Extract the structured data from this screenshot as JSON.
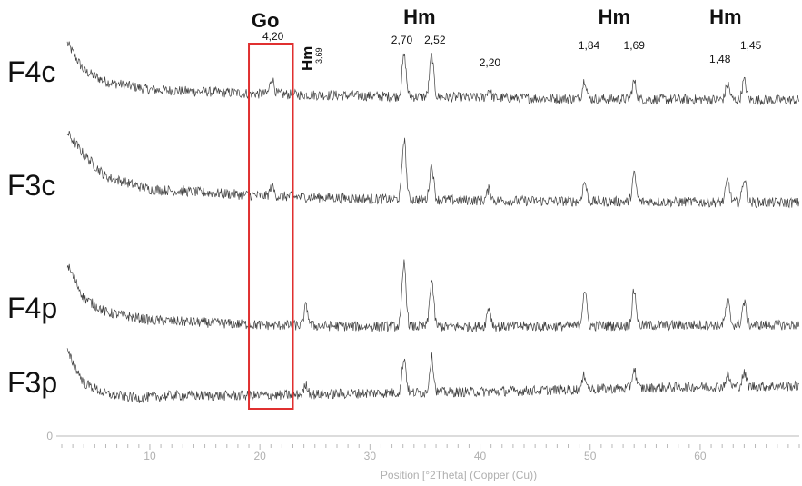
{
  "chart_data": {
    "type": "line",
    "title": "",
    "xlabel": "Position [°2Theta] (Copper (Cu))",
    "ylabel": "",
    "xlim": [
      2,
      69
    ],
    "y_tick_label": "0",
    "x_ticks": [
      10,
      20,
      30,
      40,
      50,
      60
    ],
    "grid": false,
    "series": [
      {
        "name": "F4c",
        "baseline": [
          [
            2,
            2.5
          ],
          [
            4,
            1.35
          ],
          [
            6,
            1.0
          ],
          [
            10,
            0.75
          ],
          [
            20,
            0.62
          ],
          [
            30,
            0.55
          ],
          [
            40,
            0.5
          ],
          [
            50,
            0.46
          ],
          [
            60,
            0.44
          ],
          [
            69,
            0.42
          ]
        ],
        "peaks": [
          [
            21.1,
            0.5
          ],
          [
            33.1,
            1.3
          ],
          [
            35.6,
            1.3
          ],
          [
            40.8,
            0.25
          ],
          [
            49.5,
            0.6
          ],
          [
            54.0,
            0.55
          ],
          [
            62.5,
            0.5
          ],
          [
            64.0,
            0.6
          ]
        ]
      },
      {
        "name": "F3c",
        "baseline": [
          [
            2,
            2.9
          ],
          [
            4,
            2.0
          ],
          [
            6,
            1.3
          ],
          [
            10,
            0.9
          ],
          [
            20,
            0.7
          ],
          [
            30,
            0.6
          ],
          [
            40,
            0.55
          ],
          [
            50,
            0.52
          ],
          [
            60,
            0.5
          ],
          [
            69,
            0.48
          ]
        ],
        "peaks": [
          [
            21.1,
            0.3
          ],
          [
            33.1,
            1.9
          ],
          [
            35.6,
            1.1
          ],
          [
            40.8,
            0.35
          ],
          [
            49.5,
            0.6
          ],
          [
            54.0,
            0.85
          ],
          [
            62.5,
            0.7
          ],
          [
            64.0,
            0.75
          ]
        ]
      },
      {
        "name": "F4p",
        "baseline": [
          [
            2,
            2.6
          ],
          [
            4,
            1.2
          ],
          [
            6,
            0.75
          ],
          [
            10,
            0.5
          ],
          [
            20,
            0.35
          ],
          [
            30,
            0.3
          ],
          [
            40,
            0.3
          ],
          [
            50,
            0.32
          ],
          [
            60,
            0.35
          ],
          [
            69,
            0.35
          ]
        ],
        "peaks": [
          [
            24.2,
            0.6
          ],
          [
            33.1,
            2.0
          ],
          [
            35.6,
            1.45
          ],
          [
            40.8,
            0.6
          ],
          [
            49.5,
            1.15
          ],
          [
            54.0,
            1.1
          ],
          [
            62.5,
            0.75
          ],
          [
            64.0,
            0.7
          ]
        ]
      },
      {
        "name": "F3p",
        "baseline": [
          [
            2,
            2.2
          ],
          [
            4,
            0.9
          ],
          [
            6,
            0.55
          ],
          [
            9,
            0.42
          ],
          [
            12,
            0.5
          ],
          [
            20,
            0.5
          ],
          [
            30,
            0.58
          ],
          [
            40,
            0.62
          ],
          [
            50,
            0.7
          ],
          [
            60,
            0.78
          ],
          [
            69,
            0.8
          ]
        ],
        "peaks": [
          [
            24.2,
            0.3
          ],
          [
            33.1,
            1.1
          ],
          [
            35.6,
            1.1
          ],
          [
            49.5,
            0.45
          ],
          [
            54.0,
            0.6
          ],
          [
            62.5,
            0.35
          ],
          [
            64.0,
            0.4
          ]
        ]
      }
    ],
    "phase_labels": [
      {
        "text": "Go",
        "x": 20.5
      },
      {
        "text": "Hm",
        "x": 34.5
      },
      {
        "text": "Hm",
        "x": 52.2
      },
      {
        "text": "Hm",
        "x": 62.3
      }
    ],
    "d_spacings": [
      {
        "text": "4,20",
        "x": 21.2
      },
      {
        "text": "2,70",
        "x": 32.9
      },
      {
        "text": "2,52",
        "x": 35.9
      },
      {
        "text": "2,20",
        "x": 40.9
      },
      {
        "text": "1,84",
        "x": 49.9
      },
      {
        "text": "1,69",
        "x": 54.0
      },
      {
        "text": "1,48",
        "x": 61.8
      },
      {
        "text": "1,45",
        "x": 64.6
      }
    ],
    "rotated_annotation": {
      "phase": "Hm",
      "spacing": "3,69",
      "x": 24.6
    },
    "highlight_range": [
      19,
      23
    ]
  },
  "colors": {
    "pattern": "#404040",
    "axis": "#b8b8b8",
    "highlight": "#e03030",
    "label": "#111111"
  }
}
